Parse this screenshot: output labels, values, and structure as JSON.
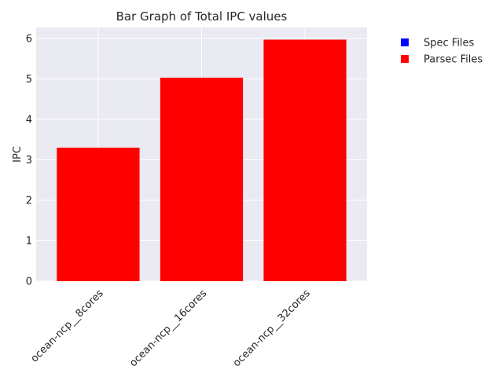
{
  "chart_data": {
    "type": "bar",
    "title": "Bar Graph of Total IPC values",
    "xlabel": "",
    "ylabel": "IPC",
    "categories": [
      "ocean-ncp__8cores",
      "ocean-ncp__16cores",
      "ocean-ncp__32cores"
    ],
    "series": [
      {
        "name": "Parsec Files",
        "color": "#ff0000",
        "values": [
          3.3,
          5.03,
          5.97
        ]
      }
    ],
    "legend": {
      "placement": "outside-top-right",
      "entries": [
        {
          "label": "Spec Files",
          "color": "#0000ff"
        },
        {
          "label": "Parsec Files",
          "color": "#ff0000"
        }
      ]
    },
    "ylim": [
      0,
      6.27
    ],
    "yticks": [
      0,
      1,
      2,
      3,
      4,
      5,
      6
    ],
    "grid": true,
    "colors": {
      "plot_background": "#eaeaf2",
      "grid": "#ffffff",
      "text": "#262626"
    }
  }
}
